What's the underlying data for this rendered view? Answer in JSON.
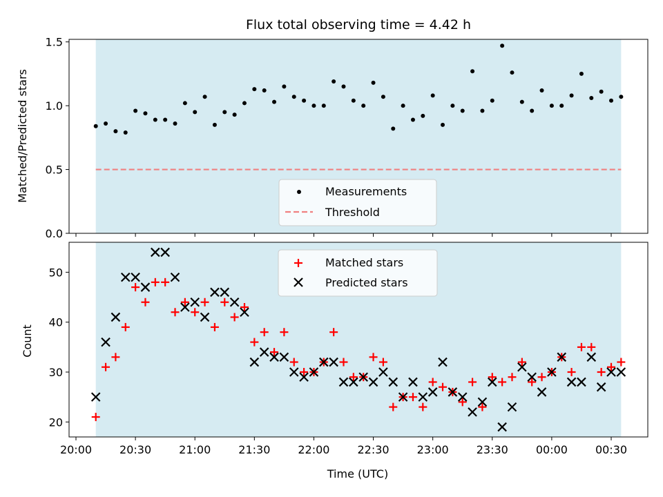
{
  "chart_data": [
    {
      "type": "scatter",
      "title": "Flux total observing time = 4.42 h",
      "xlabel": "",
      "ylabel": "Matched/Predicted stars",
      "ylim": [
        0,
        1.52
      ],
      "yticks": [
        "0.0",
        "0.5",
        "1.0",
        "1.5"
      ],
      "ytick_values": [
        0,
        0.5,
        1.0,
        1.5
      ],
      "xlim": [
        "20:00",
        "00:45"
      ],
      "shaded_span": [
        "20:10",
        "00:35"
      ],
      "legend_placement": "lower-center",
      "series": [
        {
          "name": "Measurements",
          "marker": "dot",
          "color": "#000000",
          "x": [
            "20:10",
            "20:15",
            "20:20",
            "20:25",
            "20:30",
            "20:35",
            "20:40",
            "20:45",
            "20:50",
            "20:55",
            "21:00",
            "21:05",
            "21:10",
            "21:15",
            "21:20",
            "21:25",
            "21:30",
            "21:35",
            "21:40",
            "21:45",
            "21:50",
            "21:55",
            "22:00",
            "22:05",
            "22:10",
            "22:15",
            "22:20",
            "22:25",
            "22:30",
            "22:35",
            "22:40",
            "22:45",
            "22:50",
            "22:55",
            "23:00",
            "23:05",
            "23:10",
            "23:15",
            "23:20",
            "23:25",
            "23:30",
            "23:35",
            "23:40",
            "23:45",
            "23:50",
            "23:55",
            "00:00",
            "00:05",
            "00:10",
            "00:15",
            "00:20",
            "00:25",
            "00:30",
            "00:35"
          ],
          "y": [
            0.84,
            0.86,
            0.8,
            0.79,
            0.96,
            0.94,
            0.89,
            0.89,
            0.86,
            1.02,
            0.95,
            1.07,
            0.85,
            0.95,
            0.93,
            1.02,
            1.13,
            1.12,
            1.03,
            1.15,
            1.07,
            1.04,
            1.0,
            1.0,
            1.19,
            1.15,
            1.04,
            1.0,
            1.18,
            1.07,
            0.82,
            1.0,
            0.89,
            0.92,
            1.08,
            0.85,
            1.0,
            0.96,
            1.27,
            0.96,
            1.04,
            1.47,
            1.26,
            1.03,
            0.96,
            1.12,
            1.0,
            1.0,
            1.08,
            1.25,
            1.06,
            1.11,
            1.04,
            1.07
          ]
        },
        {
          "name": "Threshold",
          "marker": "dashed-line",
          "color": "#f08080",
          "x": [
            "20:10",
            "00:35"
          ],
          "y": [
            0.5,
            0.5
          ]
        }
      ]
    },
    {
      "type": "scatter",
      "title": "",
      "xlabel": "Time (UTC)",
      "ylabel": "Count",
      "ylim": [
        17,
        56
      ],
      "yticks": [
        "20",
        "30",
        "40",
        "50"
      ],
      "ytick_values": [
        20,
        30,
        40,
        50
      ],
      "xlim": [
        "20:00",
        "00:45"
      ],
      "xticks": [
        "20:00",
        "20:30",
        "21:00",
        "21:30",
        "22:00",
        "22:30",
        "23:00",
        "23:30",
        "00:00",
        "00:30"
      ],
      "shaded_span": [
        "20:10",
        "00:35"
      ],
      "legend_placement": "upper-center",
      "series": [
        {
          "name": "Matched stars",
          "marker": "plus",
          "color": "#ff0000",
          "x": [
            "20:10",
            "20:15",
            "20:20",
            "20:25",
            "20:30",
            "20:35",
            "20:40",
            "20:45",
            "20:50",
            "20:55",
            "21:00",
            "21:05",
            "21:10",
            "21:15",
            "21:20",
            "21:25",
            "21:30",
            "21:35",
            "21:40",
            "21:45",
            "21:50",
            "21:55",
            "22:00",
            "22:05",
            "22:10",
            "22:15",
            "22:20",
            "22:25",
            "22:30",
            "22:35",
            "22:40",
            "22:45",
            "22:50",
            "22:55",
            "23:00",
            "23:05",
            "23:10",
            "23:15",
            "23:20",
            "23:25",
            "23:30",
            "23:35",
            "23:40",
            "23:45",
            "23:50",
            "23:55",
            "00:00",
            "00:05",
            "00:10",
            "00:15",
            "00:20",
            "00:25",
            "00:30",
            "00:35"
          ],
          "y": [
            21,
            31,
            33,
            39,
            47,
            44,
            48,
            48,
            42,
            44,
            42,
            44,
            39,
            44,
            41,
            43,
            36,
            38,
            34,
            38,
            32,
            30,
            30,
            32,
            38,
            32,
            29,
            29,
            33,
            32,
            23,
            25,
            25,
            23,
            28,
            27,
            26,
            24,
            28,
            23,
            29,
            28,
            29,
            32,
            28,
            29,
            30,
            33,
            30,
            35,
            35,
            30,
            31,
            32
          ]
        },
        {
          "name": "Predicted stars",
          "marker": "x",
          "color": "#000000",
          "x": [
            "20:10",
            "20:15",
            "20:20",
            "20:25",
            "20:30",
            "20:35",
            "20:40",
            "20:45",
            "20:50",
            "20:55",
            "21:00",
            "21:05",
            "21:10",
            "21:15",
            "21:20",
            "21:25",
            "21:30",
            "21:35",
            "21:40",
            "21:45",
            "21:50",
            "21:55",
            "22:00",
            "22:05",
            "22:10",
            "22:15",
            "22:20",
            "22:25",
            "22:30",
            "22:35",
            "22:40",
            "22:45",
            "22:50",
            "22:55",
            "23:00",
            "23:05",
            "23:10",
            "23:15",
            "23:20",
            "23:25",
            "23:30",
            "23:35",
            "23:40",
            "23:45",
            "23:50",
            "23:55",
            "00:00",
            "00:05",
            "00:10",
            "00:15",
            "00:20",
            "00:25",
            "00:30",
            "00:35"
          ],
          "y": [
            25,
            36,
            41,
            49,
            49,
            47,
            54,
            54,
            49,
            43,
            44,
            41,
            46,
            46,
            44,
            42,
            32,
            34,
            33,
            33,
            30,
            29,
            30,
            32,
            32,
            28,
            28,
            29,
            28,
            30,
            28,
            25,
            28,
            25,
            26,
            32,
            26,
            25,
            22,
            24,
            28,
            19,
            23,
            31,
            29,
            26,
            30,
            33,
            28,
            28,
            33,
            27,
            30,
            30
          ]
        }
      ]
    }
  ]
}
